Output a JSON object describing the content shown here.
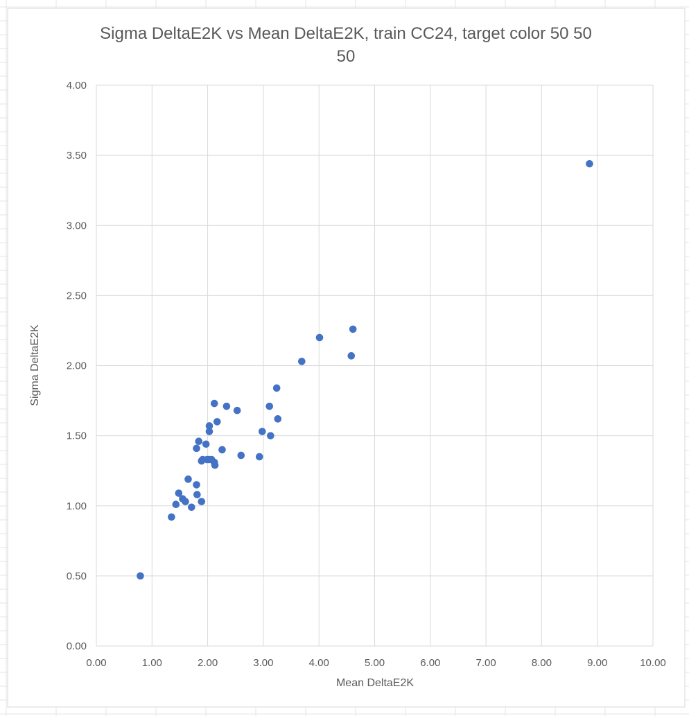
{
  "chart_data": {
    "type": "scatter",
    "title": "Sigma DeltaE2K vs Mean DeltaE2K, train CC24, target color 50 50 50",
    "title_lines": [
      "Sigma DeltaE2K vs Mean DeltaE2K, train CC24, target color 50 50",
      "50"
    ],
    "xlabel": "Mean DeltaE2K",
    "ylabel": "Sigma DeltaE2K",
    "xlim": [
      0,
      10
    ],
    "ylim": [
      0,
      4
    ],
    "xticks": [
      "0.00",
      "1.00",
      "2.00",
      "3.00",
      "4.00",
      "5.00",
      "6.00",
      "7.00",
      "8.00",
      "9.00",
      "10.00"
    ],
    "yticks": [
      "0.00",
      "0.50",
      "1.00",
      "1.50",
      "2.00",
      "2.50",
      "3.00",
      "3.50",
      "4.00"
    ],
    "grid": true,
    "marker_color": "#4472c4",
    "grid_color": "#d9d9d9",
    "points": [
      {
        "x": 0.79,
        "y": 0.5
      },
      {
        "x": 1.35,
        "y": 0.92
      },
      {
        "x": 1.43,
        "y": 1.01
      },
      {
        "x": 1.48,
        "y": 1.09
      },
      {
        "x": 1.55,
        "y": 1.05
      },
      {
        "x": 1.6,
        "y": 1.03
      },
      {
        "x": 1.65,
        "y": 1.19
      },
      {
        "x": 1.71,
        "y": 0.99
      },
      {
        "x": 1.8,
        "y": 1.15
      },
      {
        "x": 1.81,
        "y": 1.08
      },
      {
        "x": 1.89,
        "y": 1.03
      },
      {
        "x": 1.89,
        "y": 1.32
      },
      {
        "x": 1.91,
        "y": 1.33
      },
      {
        "x": 1.8,
        "y": 1.41
      },
      {
        "x": 1.84,
        "y": 1.46
      },
      {
        "x": 1.97,
        "y": 1.44
      },
      {
        "x": 1.99,
        "y": 1.33
      },
      {
        "x": 2.02,
        "y": 1.33
      },
      {
        "x": 2.07,
        "y": 1.33
      },
      {
        "x": 2.12,
        "y": 1.31
      },
      {
        "x": 2.13,
        "y": 1.29
      },
      {
        "x": 2.03,
        "y": 1.53
      },
      {
        "x": 2.03,
        "y": 1.57
      },
      {
        "x": 2.12,
        "y": 1.73
      },
      {
        "x": 2.17,
        "y": 1.6
      },
      {
        "x": 2.26,
        "y": 1.4
      },
      {
        "x": 2.34,
        "y": 1.71
      },
      {
        "x": 2.53,
        "y": 1.68
      },
      {
        "x": 2.6,
        "y": 1.36
      },
      {
        "x": 2.93,
        "y": 1.35
      },
      {
        "x": 2.98,
        "y": 1.53
      },
      {
        "x": 3.11,
        "y": 1.71
      },
      {
        "x": 3.13,
        "y": 1.5
      },
      {
        "x": 3.24,
        "y": 1.84
      },
      {
        "x": 3.26,
        "y": 1.62
      },
      {
        "x": 3.69,
        "y": 2.03
      },
      {
        "x": 4.01,
        "y": 2.2
      },
      {
        "x": 4.58,
        "y": 2.07
      },
      {
        "x": 4.61,
        "y": 2.26
      },
      {
        "x": 8.86,
        "y": 3.44
      }
    ]
  }
}
